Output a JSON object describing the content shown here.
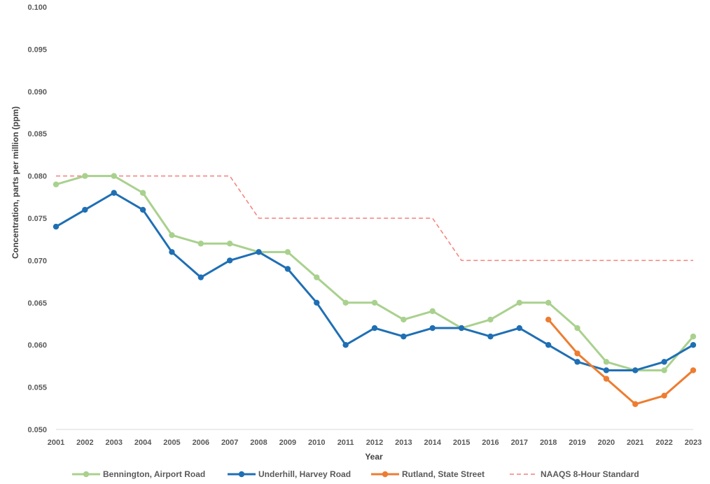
{
  "chart_data": {
    "type": "line",
    "title": "",
    "xlabel": "Year",
    "ylabel": "Concentration, parts per million (ppm)",
    "ylim": [
      0.05,
      0.1
    ],
    "yticks": [
      "0.050",
      "0.055",
      "0.060",
      "0.065",
      "0.070",
      "0.075",
      "0.080",
      "0.085",
      "0.090",
      "0.095",
      "0.100"
    ],
    "categories": [
      "2001",
      "2002",
      "2003",
      "2004",
      "2005",
      "2006",
      "2007",
      "2008",
      "2009",
      "2010",
      "2011",
      "2012",
      "2013",
      "2014",
      "2015",
      "2016",
      "2017",
      "2018",
      "2019",
      "2020",
      "2021",
      "2022",
      "2023"
    ],
    "grid": false,
    "legend_position": "bottom",
    "series": [
      {
        "name": "Bennington, Airport Road",
        "color": "#a9d18e",
        "style": "solid",
        "markers": true,
        "values": [
          0.079,
          0.08,
          0.08,
          0.078,
          0.073,
          0.072,
          0.072,
          0.071,
          0.071,
          0.068,
          0.065,
          0.065,
          0.063,
          0.064,
          0.062,
          0.063,
          0.065,
          0.065,
          0.062,
          0.058,
          0.057,
          0.057,
          0.061
        ]
      },
      {
        "name": "Underhill, Harvey Road",
        "color": "#1f6fb4",
        "style": "solid",
        "markers": true,
        "values": [
          0.074,
          0.076,
          0.078,
          0.076,
          0.071,
          0.068,
          0.07,
          0.071,
          0.069,
          0.065,
          0.06,
          0.062,
          0.061,
          0.062,
          0.062,
          0.061,
          0.062,
          0.06,
          0.058,
          0.057,
          0.057,
          0.058,
          0.06
        ]
      },
      {
        "name": "Rutland, State Street",
        "color": "#ed7d31",
        "style": "solid",
        "markers": true,
        "values": [
          null,
          null,
          null,
          null,
          null,
          null,
          null,
          null,
          null,
          null,
          null,
          null,
          null,
          null,
          null,
          null,
          null,
          0.063,
          0.059,
          0.056,
          0.053,
          0.054,
          0.057
        ]
      },
      {
        "name": "NAAQS 8-Hour Standard",
        "color": "#f4817c",
        "style": "dashed",
        "markers": false,
        "values": [
          0.08,
          0.08,
          0.08,
          0.08,
          0.08,
          0.08,
          0.08,
          0.075,
          0.075,
          0.075,
          0.075,
          0.075,
          0.075,
          0.075,
          0.07,
          0.07,
          0.07,
          0.07,
          0.07,
          0.07,
          0.07,
          0.07,
          0.07
        ]
      }
    ]
  }
}
